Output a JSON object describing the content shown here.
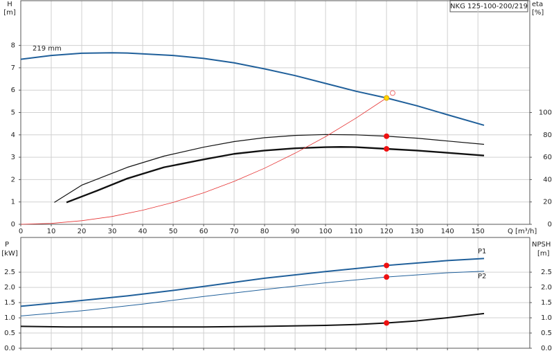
{
  "chart_data": [
    {
      "type": "line",
      "title": "NKG 125-100-200/219",
      "ylabel": "H",
      "yunit": "[m]",
      "y2label": "eta",
      "y2unit": "[%]",
      "xlabel": "Q [m³/h]",
      "xlim": [
        0,
        167
      ],
      "xticks": [
        0,
        10,
        20,
        30,
        40,
        50,
        60,
        70,
        80,
        90,
        100,
        110,
        120,
        130,
        140,
        150
      ],
      "ylim": [
        0,
        10
      ],
      "yticks": [
        0,
        1,
        2,
        3,
        4,
        5,
        6,
        7,
        8
      ],
      "y2lim": [
        0,
        200
      ],
      "y2ticks": [
        0,
        20,
        40,
        60,
        80,
        100
      ],
      "grid": true,
      "show_xtick_labels": true,
      "series": [
        {
          "name": "219 mm",
          "color": "#1f5f9a",
          "width": 2,
          "x": [
            0,
            10,
            20,
            30,
            35,
            50,
            60,
            70,
            80,
            90,
            100,
            110,
            120,
            130,
            140,
            152
          ],
          "values": [
            7.38,
            7.55,
            7.65,
            7.67,
            7.66,
            7.55,
            7.42,
            7.22,
            6.95,
            6.65,
            6.3,
            5.95,
            5.65,
            5.3,
            4.9,
            4.43
          ]
        },
        {
          "color": "#111111",
          "width": 1.2,
          "axis": "y2",
          "x": [
            11,
            20,
            35,
            47,
            60,
            70,
            80,
            90,
            100,
            110,
            120,
            130,
            140,
            152
          ],
          "values": [
            19.6,
            35,
            51,
            61,
            69,
            74,
            77.5,
            79.5,
            80.3,
            80,
            78.8,
            77,
            74.5,
            71.5
          ]
        },
        {
          "color": "#111111",
          "width": 2.4,
          "axis": "y2",
          "x": [
            15,
            25,
            35,
            47,
            60,
            70,
            80,
            90,
            100,
            105,
            110,
            120,
            130,
            140,
            152
          ],
          "values": [
            19.6,
            30,
            41,
            51,
            58,
            63,
            66,
            68,
            69,
            69.2,
            69,
            67.5,
            66,
            64,
            61.5
          ]
        },
        {
          "color": "#e53030",
          "width": 0.8,
          "x": [
            0,
            10,
            20,
            30,
            40,
            50,
            60,
            70,
            80,
            90,
            100,
            110,
            120
          ],
          "values": [
            0,
            0.04,
            0.16,
            0.35,
            0.63,
            0.98,
            1.41,
            1.92,
            2.51,
            3.18,
            3.92,
            4.75,
            5.65
          ]
        }
      ],
      "points": [
        {
          "x": 120,
          "y": 5.65,
          "fill": "#ffd700",
          "color": "#e0a000"
        },
        {
          "x": 122,
          "y": 5.87,
          "fill": "none",
          "color": "#f07070"
        },
        {
          "x": 120,
          "y": 78.8,
          "axis": "y2",
          "fill": "#ee1111",
          "color": "#ee1111"
        },
        {
          "x": 120,
          "y": 67.5,
          "axis": "y2",
          "fill": "#ee1111",
          "color": "#ee1111"
        }
      ]
    },
    {
      "type": "line",
      "ylabel": "P",
      "yunit": "[kW]",
      "y2label": "NPSH",
      "y2unit": "[m]",
      "xlim": [
        0,
        167
      ],
      "xticks": [
        0,
        10,
        20,
        30,
        40,
        50,
        60,
        70,
        80,
        90,
        100,
        110,
        120,
        130,
        140,
        150
      ],
      "ylim": [
        0,
        3.64
      ],
      "yticks": [
        {
          "value": 0,
          "label": "0.0"
        },
        {
          "value": 0.5,
          "label": "0.5"
        },
        {
          "value": 1,
          "label": "1.0"
        },
        {
          "value": 1.5,
          "label": "1.5"
        },
        {
          "value": 2,
          "label": "2.0"
        },
        {
          "value": 2.5,
          "label": "2.5"
        }
      ],
      "y2lim": [
        0,
        3.64
      ],
      "y2ticks": [
        {
          "value": 0,
          "label": "0.0"
        },
        {
          "value": 0.5,
          "label": "0.5"
        },
        {
          "value": 1,
          "label": "1.0"
        },
        {
          "value": 1.5,
          "label": "1.5"
        },
        {
          "value": 2,
          "label": "2.0"
        },
        {
          "value": 2.5,
          "label": "2.5"
        }
      ],
      "grid": true,
      "show_xtick_labels": false,
      "series": [
        {
          "name": "P1",
          "color": "#1f5f9a",
          "width": 2,
          "x": [
            0,
            15,
            35,
            50,
            60,
            80,
            100,
            120,
            140,
            152
          ],
          "values": [
            1.38,
            1.52,
            1.72,
            1.9,
            2.03,
            2.3,
            2.52,
            2.72,
            2.88,
            2.95
          ]
        },
        {
          "name": "P2",
          "color": "#1f5f9a",
          "width": 1,
          "x": [
            0,
            20,
            40,
            60,
            80,
            100,
            120,
            140,
            152
          ],
          "values": [
            1.06,
            1.23,
            1.45,
            1.7,
            1.93,
            2.15,
            2.34,
            2.48,
            2.53
          ]
        },
        {
          "color": "#111111",
          "width": 2,
          "axis": "y2",
          "x": [
            0,
            15,
            40,
            60,
            80,
            100,
            110,
            120,
            130,
            140,
            152
          ],
          "values": [
            0.72,
            0.7,
            0.7,
            0.7,
            0.72,
            0.75,
            0.78,
            0.83,
            0.9,
            1.0,
            1.14
          ]
        }
      ],
      "points": [
        {
          "x": 120,
          "y": 2.72,
          "fill": "#ee1111",
          "color": "#ee1111"
        },
        {
          "x": 120,
          "y": 2.34,
          "fill": "#ee1111",
          "color": "#ee1111"
        },
        {
          "x": 120,
          "y": 0.83,
          "axis": "y2",
          "fill": "#ee1111",
          "color": "#ee1111"
        }
      ]
    }
  ]
}
